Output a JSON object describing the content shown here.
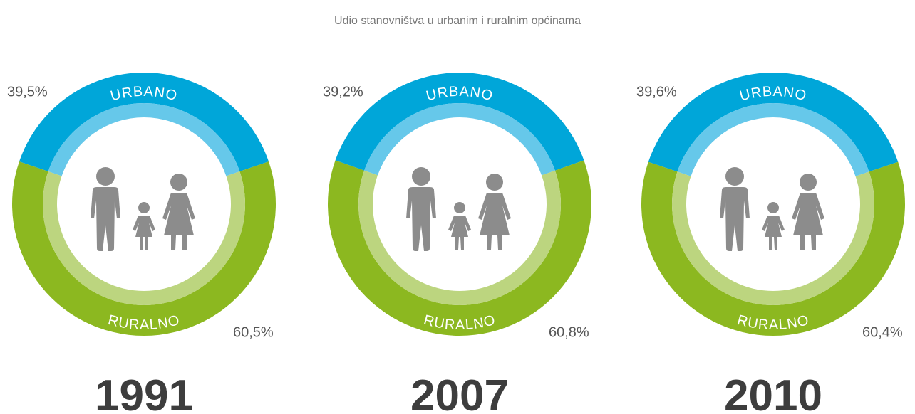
{
  "title": "Udio stanovništva u urbanim i ruralnim općinama",
  "chart_data": [
    {
      "type": "donut",
      "title": "1991",
      "categories": [
        "URBANO",
        "RURALNO"
      ],
      "values": [
        39.5,
        60.5
      ],
      "value_labels": [
        "39,5%",
        "60,5%"
      ],
      "colors": [
        "#00a6d9",
        "#8cb820"
      ],
      "inner_colors": [
        "#66c8ea",
        "#bcd57f"
      ]
    },
    {
      "type": "donut",
      "title": "2007",
      "categories": [
        "URBANO",
        "RURALNO"
      ],
      "values": [
        39.2,
        60.8
      ],
      "value_labels": [
        "39,2%",
        "60,8%"
      ],
      "colors": [
        "#00a6d9",
        "#8cb820"
      ],
      "inner_colors": [
        "#66c8ea",
        "#bcd57f"
      ]
    },
    {
      "type": "donut",
      "title": "2010",
      "categories": [
        "URBANO",
        "RURALNO"
      ],
      "values": [
        39.6,
        60.4
      ],
      "value_labels": [
        "39,6%",
        "60,4%"
      ],
      "colors": [
        "#00a6d9",
        "#8cb820"
      ],
      "inner_colors": [
        "#66c8ea",
        "#bcd57f"
      ]
    }
  ]
}
